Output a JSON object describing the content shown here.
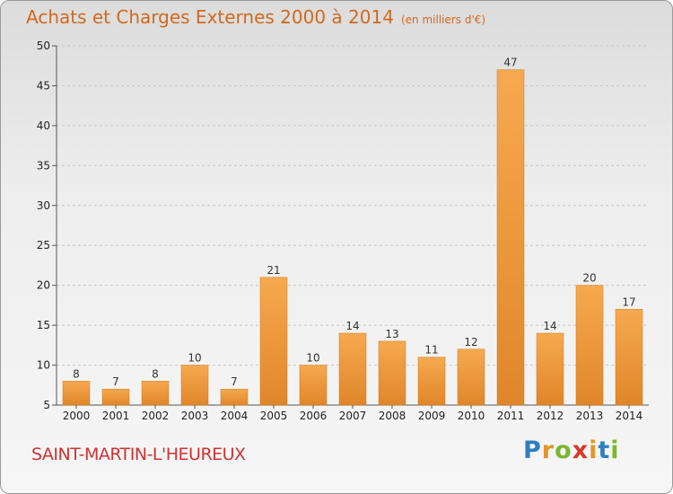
{
  "header": {
    "title": "Achats et Charges Externes 2000 à 2014",
    "unit": "(en milliers d'€)"
  },
  "footer": {
    "commune": "SAINT-MARTIN-L'HEUREUX",
    "logo_letters": [
      {
        "ch": "P",
        "color": "#2f7fbf"
      },
      {
        "ch": "r",
        "color": "#e0962a"
      },
      {
        "ch": "o",
        "color": "#7ab830"
      },
      {
        "ch": "x",
        "color": "#d43a2a"
      },
      {
        "ch": "i",
        "color": "#e0962a"
      },
      {
        "ch": "t",
        "color": "#2f7fbf"
      },
      {
        "ch": "i",
        "color": "#7ab830"
      }
    ]
  },
  "colors": {
    "bar_light": "#f7a94f",
    "bar_dark": "#e0862a",
    "accent": "#d2691e"
  },
  "chart_data": {
    "type": "bar",
    "title": "Achats et Charges Externes 2000 à 2014",
    "subtitle": "(en milliers d'€)",
    "categories": [
      "2000",
      "2001",
      "2002",
      "2003",
      "2004",
      "2005",
      "2006",
      "2007",
      "2008",
      "2009",
      "2010",
      "2011",
      "2012",
      "2013",
      "2014"
    ],
    "values": [
      8,
      7,
      8,
      10,
      7,
      21,
      10,
      14,
      13,
      11,
      12,
      47,
      14,
      20,
      17
    ],
    "ylim": [
      5,
      50
    ],
    "yticks": [
      5,
      10,
      15,
      20,
      25,
      30,
      35,
      40,
      45,
      50
    ],
    "grid": true,
    "xlabel": "",
    "ylabel": ""
  }
}
